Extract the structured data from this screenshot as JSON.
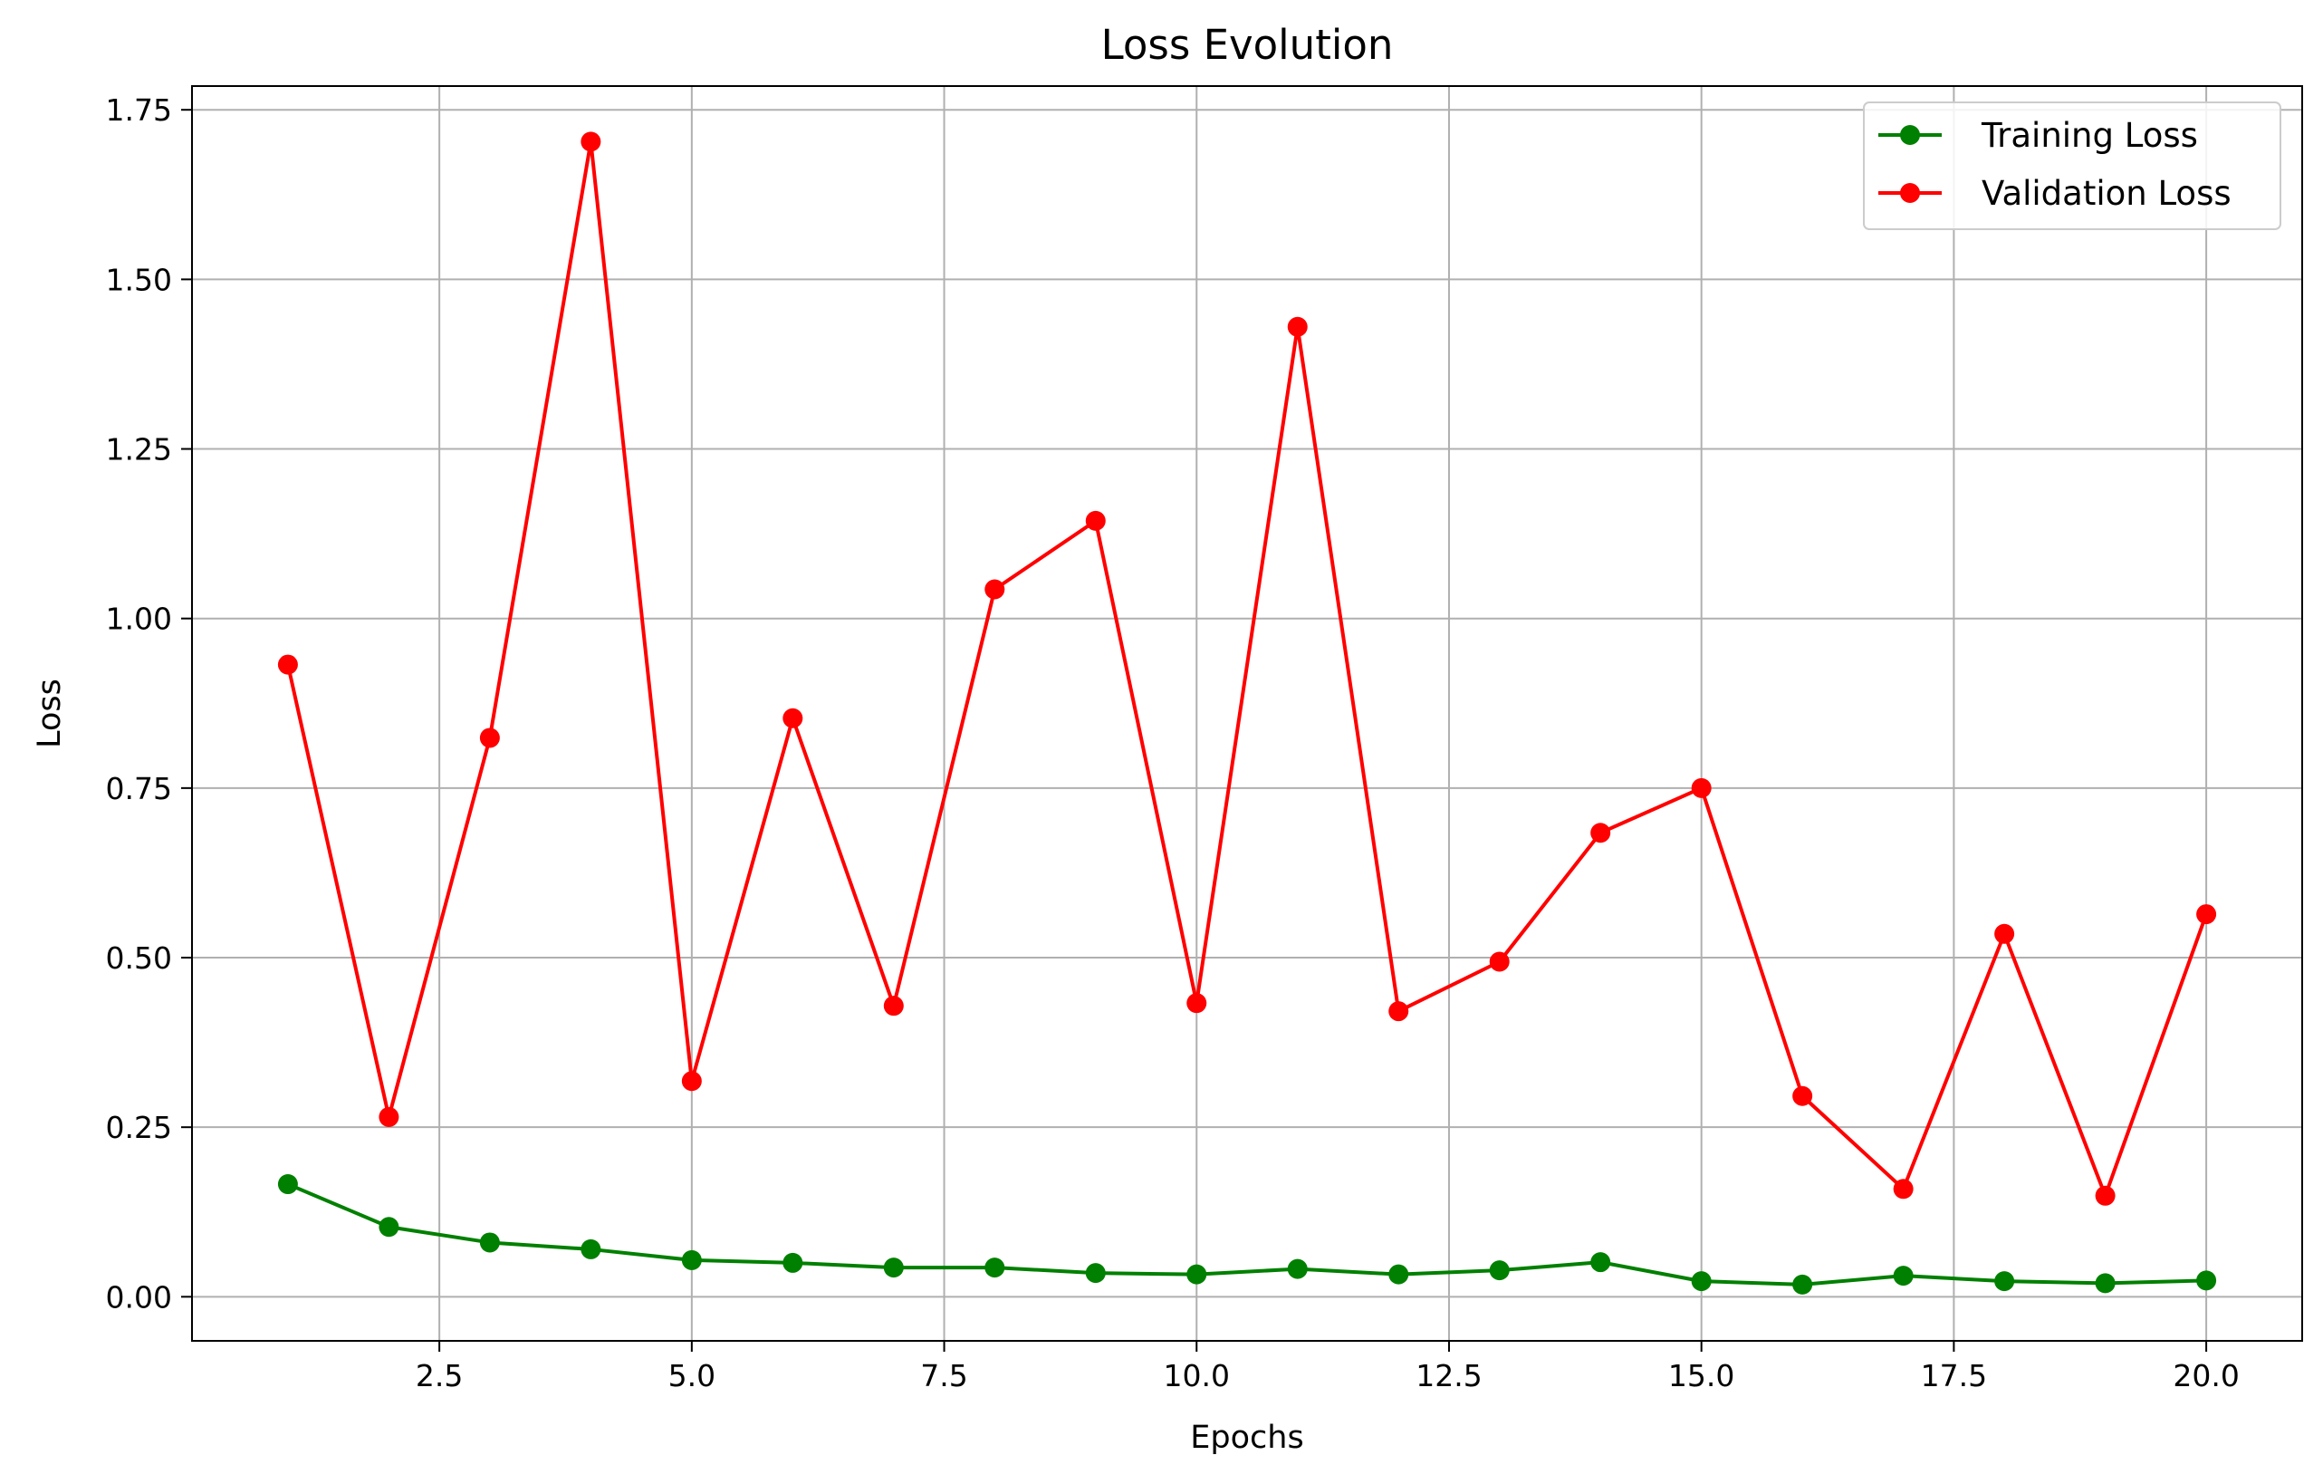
{
  "chart_data": {
    "type": "line",
    "title": "Loss Evolution",
    "xlabel": "Epochs",
    "ylabel": "Loss",
    "xlim": [
      0.05,
      20.95
    ],
    "ylim": [
      -0.065,
      1.785
    ],
    "x_ticks": [
      2.5,
      5.0,
      7.5,
      10.0,
      12.5,
      15.0,
      17.5,
      20.0
    ],
    "x_tick_labels": [
      "2.5",
      "5.0",
      "7.5",
      "10.0",
      "12.5",
      "15.0",
      "17.5",
      "20.0"
    ],
    "y_ticks": [
      0.0,
      0.25,
      0.5,
      0.75,
      1.0,
      1.25,
      1.5,
      1.75
    ],
    "y_tick_labels": [
      "0.00",
      "0.25",
      "0.50",
      "0.75",
      "1.00",
      "1.25",
      "1.50",
      "1.75"
    ],
    "grid": true,
    "legend_position": "top-right",
    "x": [
      1,
      2,
      3,
      4,
      5,
      6,
      7,
      8,
      9,
      10,
      11,
      12,
      13,
      14,
      15,
      16,
      17,
      18,
      19,
      20
    ],
    "series": [
      {
        "name": "Training Loss",
        "color": "#008000",
        "marker": "circle",
        "values": [
          0.166,
          0.103,
          0.08,
          0.07,
          0.054,
          0.05,
          0.043,
          0.043,
          0.035,
          0.033,
          0.041,
          0.033,
          0.039,
          0.051,
          0.023,
          0.018,
          0.031,
          0.023,
          0.02,
          0.024
        ]
      },
      {
        "name": "Validation Loss",
        "color": "#ff0000",
        "marker": "circle",
        "values": [
          0.932,
          0.265,
          0.824,
          1.703,
          0.318,
          0.853,
          0.429,
          1.043,
          1.144,
          0.433,
          1.43,
          0.421,
          0.494,
          0.684,
          0.75,
          0.296,
          0.159,
          0.535,
          0.149,
          0.564
        ]
      }
    ]
  }
}
